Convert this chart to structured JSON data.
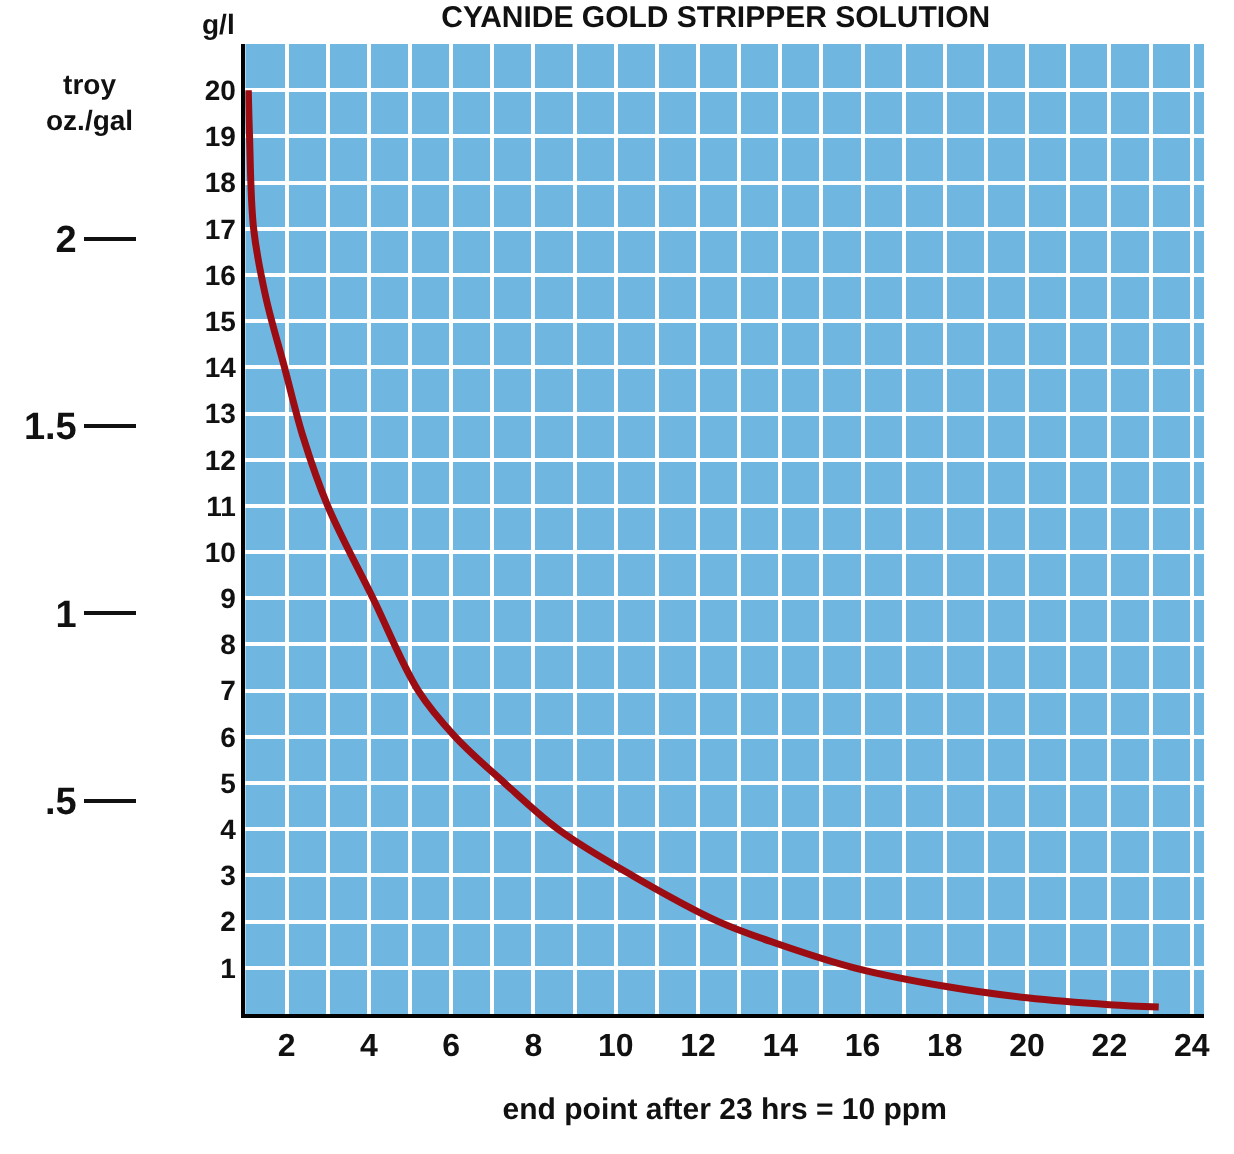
{
  "chart_data": {
    "type": "line",
    "title": "CYANIDE GOLD STRIPPER SOLUTION",
    "xlabel": "end point after 23 hrs = 10 ppm",
    "ylabel": "g/l",
    "y2label": "troy\noz./gal",
    "x": [
      1.07,
      1.1,
      1.2,
      1.5,
      1.95,
      2.4,
      3,
      4.1,
      5.2,
      6.1,
      7.3,
      8.6,
      10.4,
      12.5,
      14,
      15.8,
      18,
      20,
      22,
      23.2
    ],
    "series": [
      {
        "color": "#9b0d12",
        "values": [
          20,
          19,
          17,
          15.5,
          14,
          12.5,
          11,
          9,
          7,
          6,
          5,
          4,
          3,
          2,
          1.5,
          1,
          0.6,
          0.35,
          0.2,
          0.15
        ]
      }
    ],
    "xlim": [
      1,
      24.3
    ],
    "xticks": [
      2,
      4,
      6,
      8,
      10,
      12,
      14,
      16,
      18,
      20,
      22,
      24
    ],
    "ylim": [
      0,
      21
    ],
    "yticks": [
      1,
      2,
      3,
      4,
      5,
      6,
      7,
      8,
      9,
      10,
      11,
      12,
      13,
      14,
      15,
      16,
      17,
      18,
      19,
      20
    ],
    "y2lim": [
      -0.07,
      2.52
    ],
    "y2ticks": [
      {
        "value": 0.5,
        "label": ".5"
      },
      1,
      1.5,
      2
    ],
    "grid": true,
    "legend": false,
    "marker": "none",
    "line_style": "solid"
  }
}
